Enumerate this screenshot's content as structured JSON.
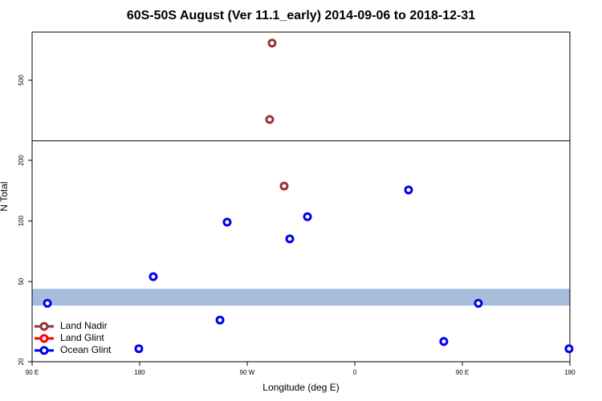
{
  "chart_data": {
    "type": "scatter",
    "title": "60S-50S August (Ver 11.1_early)   2014-09-06 to 2018-12-31",
    "x_label": "Longitude (deg E)",
    "y_label": "N Total",
    "xlim": [
      90,
      540
    ],
    "xticks": [
      {
        "value": 90,
        "label": "90 E"
      },
      {
        "value": 180,
        "label": "180"
      },
      {
        "value": 270,
        "label": "90 W"
      },
      {
        "value": 360,
        "label": "0"
      },
      {
        "value": 450,
        "label": "90 E"
      },
      {
        "value": 540,
        "label": "180"
      }
    ],
    "ylim": [
      20,
      867
    ],
    "yticks": [
      20,
      50,
      100,
      200,
      500
    ],
    "log_y": true,
    "hline": 250,
    "band": {
      "range": [
        38,
        46
      ],
      "color": "#a7bcdb"
    },
    "legend": "bottom-left",
    "series": [
      {
        "name": "Land Nadir",
        "color": "#993333",
        "x": [
          290.8,
          288.8,
          300.9
        ],
        "values": [
          764,
          319,
          149
        ]
      },
      {
        "name": "Land Glint",
        "color": "#ff0000",
        "x": [],
        "values": []
      },
      {
        "name": "Ocean Glint",
        "color": "#0000ee",
        "x": [
          102.8,
          179.3,
          191.4,
          247.2,
          253.2,
          305.6,
          320.4,
          405,
          434.5,
          463.4,
          539.3
        ],
        "values": [
          39,
          23.2,
          52.9,
          32.2,
          98.6,
          81.5,
          105,
          142.6,
          25.2,
          39,
          23.2
        ]
      }
    ]
  }
}
